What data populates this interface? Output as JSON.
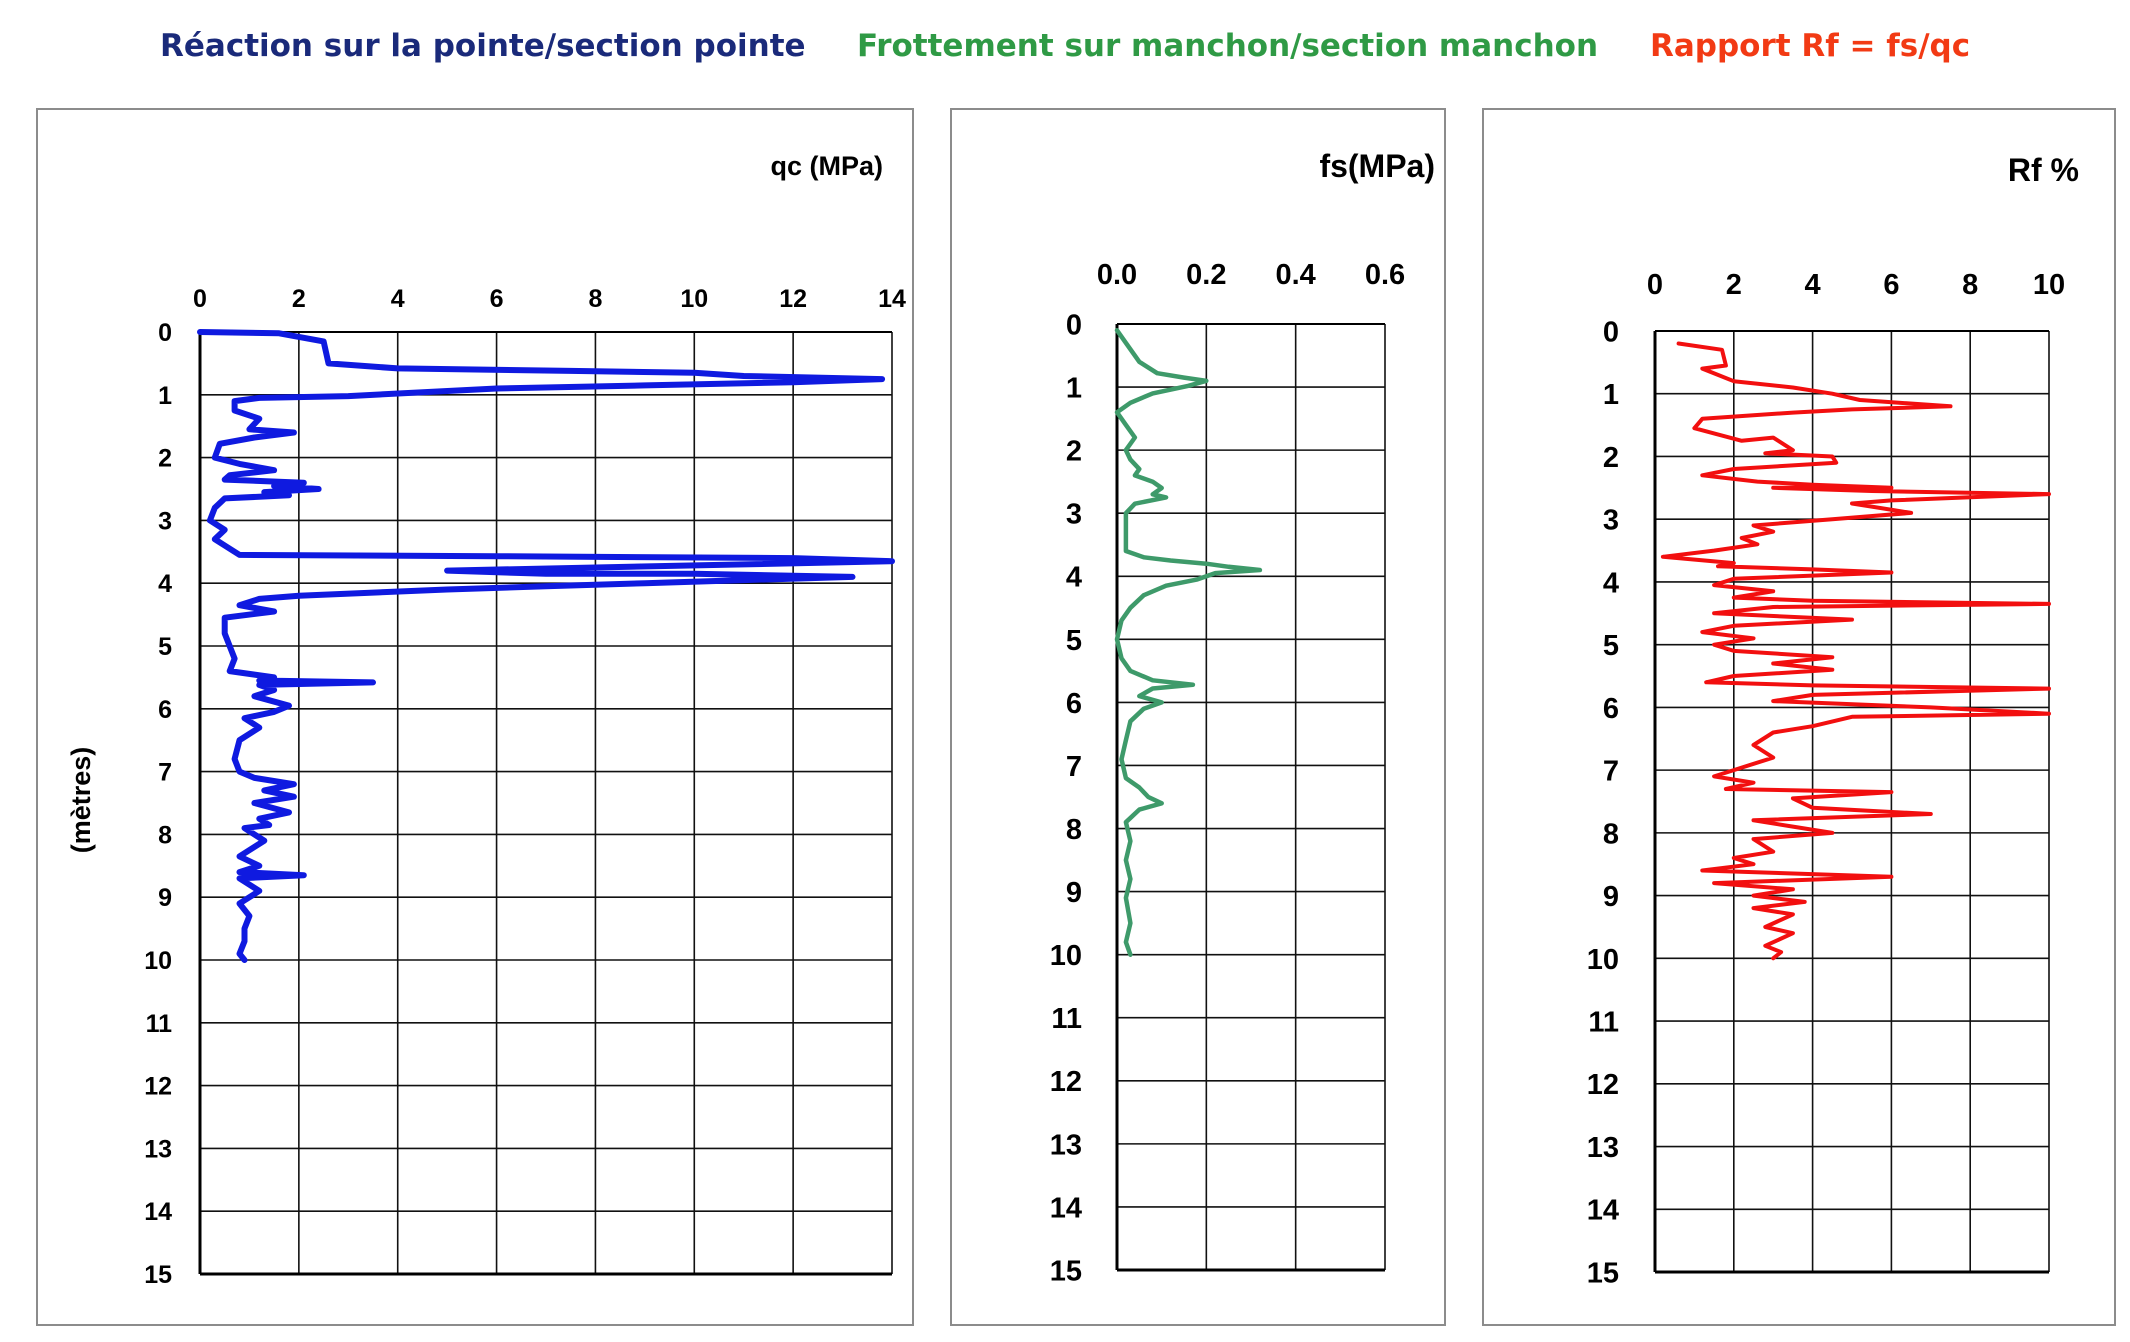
{
  "headings": {
    "qc": "Réaction sur la pointe/section pointe",
    "fs": "Frottement sur manchon/section manchon",
    "rf": "Rapport Rf = fs/qc"
  },
  "colors": {
    "qc": "#0f1ae0",
    "fs": "#3e9a6a",
    "rf": "#f20f0f",
    "heading_qc": "#1a2a7a",
    "heading_fs": "#2f9a45",
    "heading_rf": "#f23a14"
  },
  "chart_data": [
    {
      "type": "line",
      "title": "",
      "xlabel": "qc (MPa)",
      "ylabel": "(mètres)",
      "xlim": [
        0,
        14
      ],
      "ylim": [
        0,
        15
      ],
      "x_ticks": [
        "0",
        "2",
        "4",
        "6",
        "8",
        "10",
        "12",
        "14"
      ],
      "y_ticks": [
        "0",
        "1",
        "2",
        "3",
        "4",
        "5",
        "6",
        "7",
        "8",
        "9",
        "10",
        "11",
        "12",
        "13",
        "14",
        "15"
      ],
      "grid": true,
      "series": [
        {
          "color": "#0f1ae0",
          "points": [
            [
              0,
              0
            ],
            [
              1.6,
              0.02
            ],
            [
              2.5,
              0.15
            ],
            [
              2.6,
              0.5
            ],
            [
              4,
              0.58
            ],
            [
              7.5,
              0.62
            ],
            [
              10,
              0.65
            ],
            [
              11,
              0.7
            ],
            [
              13.8,
              0.75
            ],
            [
              12,
              0.8
            ],
            [
              9,
              0.85
            ],
            [
              6,
              0.9
            ],
            [
              3,
              1.02
            ],
            [
              1.2,
              1.05
            ],
            [
              0.7,
              1.1
            ],
            [
              0.7,
              1.25
            ],
            [
              1.2,
              1.38
            ],
            [
              1,
              1.55
            ],
            [
              1.9,
              1.6
            ],
            [
              1.1,
              1.68
            ],
            [
              0.4,
              1.78
            ],
            [
              0.3,
              2.0
            ],
            [
              0.8,
              2.1
            ],
            [
              1.5,
              2.2
            ],
            [
              0.6,
              2.28
            ],
            [
              0.5,
              2.35
            ],
            [
              2.1,
              2.4
            ],
            [
              1.5,
              2.45
            ],
            [
              2.4,
              2.5
            ],
            [
              1.3,
              2.55
            ],
            [
              1.8,
              2.6
            ],
            [
              0.5,
              2.65
            ],
            [
              0.3,
              2.8
            ],
            [
              0.2,
              3.0
            ],
            [
              0.5,
              3.15
            ],
            [
              0.3,
              3.3
            ],
            [
              0.5,
              3.4
            ],
            [
              0.8,
              3.55
            ],
            [
              6,
              3.57
            ],
            [
              12,
              3.6
            ],
            [
              14,
              3.65
            ],
            [
              11,
              3.7
            ],
            [
              8,
              3.75
            ],
            [
              5,
              3.8
            ],
            [
              7,
              3.85
            ],
            [
              10,
              3.85
            ],
            [
              12,
              3.88
            ],
            [
              13.2,
              3.9
            ],
            [
              11,
              3.95
            ],
            [
              9,
              4.0
            ],
            [
              7,
              4.05
            ],
            [
              5,
              4.1
            ],
            [
              3.5,
              4.15
            ],
            [
              2,
              4.2
            ],
            [
              1.2,
              4.25
            ],
            [
              0.8,
              4.35
            ],
            [
              1.5,
              4.45
            ],
            [
              0.5,
              4.55
            ],
            [
              0.5,
              4.8
            ],
            [
              0.7,
              5.2
            ],
            [
              0.6,
              5.4
            ],
            [
              1.5,
              5.5
            ],
            [
              1.2,
              5.55
            ],
            [
              3.5,
              5.58
            ],
            [
              1.2,
              5.62
            ],
            [
              1.5,
              5.7
            ],
            [
              1.1,
              5.8
            ],
            [
              1.8,
              5.95
            ],
            [
              1.5,
              6.05
            ],
            [
              0.9,
              6.15
            ],
            [
              1.2,
              6.3
            ],
            [
              0.8,
              6.5
            ],
            [
              0.7,
              6.8
            ],
            [
              0.8,
              7.0
            ],
            [
              1.1,
              7.1
            ],
            [
              1.9,
              7.2
            ],
            [
              1.3,
              7.3
            ],
            [
              1.9,
              7.4
            ],
            [
              1.1,
              7.5
            ],
            [
              1.8,
              7.65
            ],
            [
              1.2,
              7.75
            ],
            [
              1.4,
              7.85
            ],
            [
              0.9,
              7.9
            ],
            [
              1.3,
              8.1
            ],
            [
              0.8,
              8.35
            ],
            [
              1.2,
              8.5
            ],
            [
              0.8,
              8.6
            ],
            [
              2.1,
              8.65
            ],
            [
              0.8,
              8.7
            ],
            [
              1.2,
              8.9
            ],
            [
              0.8,
              9.1
            ],
            [
              1.0,
              9.3
            ],
            [
              0.9,
              9.5
            ],
            [
              0.9,
              9.7
            ],
            [
              0.8,
              9.9
            ],
            [
              0.9,
              10.0
            ]
          ]
        }
      ]
    },
    {
      "type": "line",
      "title": "",
      "xlabel": "fs(MPa)",
      "xlim": [
        0,
        0.6
      ],
      "ylim": [
        0,
        15
      ],
      "x_ticks": [
        "0.0",
        "0.2",
        "0.4",
        "0.6"
      ],
      "y_ticks": [
        "0",
        "1",
        "2",
        "3",
        "4",
        "5",
        "6",
        "7",
        "8",
        "9",
        "10",
        "11",
        "12",
        "13",
        "14",
        "15"
      ],
      "grid": true,
      "series": [
        {
          "color": "#3e9a6a",
          "points": [
            [
              0,
              0.1
            ],
            [
              0.02,
              0.3
            ],
            [
              0.05,
              0.6
            ],
            [
              0.09,
              0.78
            ],
            [
              0.15,
              0.85
            ],
            [
              0.2,
              0.9
            ],
            [
              0.16,
              0.98
            ],
            [
              0.08,
              1.1
            ],
            [
              0.03,
              1.25
            ],
            [
              0.0,
              1.4
            ],
            [
              0.02,
              1.6
            ],
            [
              0.04,
              1.8
            ],
            [
              0.02,
              2.0
            ],
            [
              0.03,
              2.15
            ],
            [
              0.05,
              2.3
            ],
            [
              0.04,
              2.4
            ],
            [
              0.08,
              2.5
            ],
            [
              0.1,
              2.6
            ],
            [
              0.08,
              2.7
            ],
            [
              0.11,
              2.75
            ],
            [
              0.04,
              2.85
            ],
            [
              0.02,
              3.0
            ],
            [
              0.02,
              3.6
            ],
            [
              0.06,
              3.7
            ],
            [
              0.12,
              3.75
            ],
            [
              0.2,
              3.8
            ],
            [
              0.25,
              3.85
            ],
            [
              0.32,
              3.9
            ],
            [
              0.22,
              3.95
            ],
            [
              0.18,
              4.05
            ],
            [
              0.11,
              4.15
            ],
            [
              0.06,
              4.3
            ],
            [
              0.03,
              4.5
            ],
            [
              0.01,
              4.7
            ],
            [
              0.0,
              5.0
            ],
            [
              0.01,
              5.3
            ],
            [
              0.03,
              5.5
            ],
            [
              0.08,
              5.65
            ],
            [
              0.17,
              5.72
            ],
            [
              0.08,
              5.78
            ],
            [
              0.05,
              5.9
            ],
            [
              0.1,
              6.0
            ],
            [
              0.06,
              6.1
            ],
            [
              0.03,
              6.3
            ],
            [
              0.02,
              6.6
            ],
            [
              0.01,
              6.9
            ],
            [
              0.02,
              7.2
            ],
            [
              0.05,
              7.35
            ],
            [
              0.07,
              7.5
            ],
            [
              0.1,
              7.6
            ],
            [
              0.05,
              7.7
            ],
            [
              0.02,
              7.9
            ],
            [
              0.03,
              8.2
            ],
            [
              0.02,
              8.5
            ],
            [
              0.03,
              8.8
            ],
            [
              0.02,
              9.1
            ],
            [
              0.03,
              9.5
            ],
            [
              0.02,
              9.8
            ],
            [
              0.03,
              10.0
            ]
          ]
        }
      ]
    },
    {
      "type": "line",
      "title": "",
      "xlabel": "Rf %",
      "xlim": [
        0,
        10
      ],
      "ylim": [
        0,
        15
      ],
      "x_ticks": [
        "0",
        "2",
        "4",
        "6",
        "8",
        "10"
      ],
      "y_ticks": [
        "0",
        "1",
        "2",
        "3",
        "4",
        "5",
        "6",
        "7",
        "8",
        "9",
        "10",
        "11",
        "12",
        "13",
        "14",
        "15"
      ],
      "grid": true,
      "series": [
        {
          "color": "#f20f0f",
          "points": [
            [
              0.6,
              0.2
            ],
            [
              1.7,
              0.3
            ],
            [
              1.8,
              0.55
            ],
            [
              1.2,
              0.6
            ],
            [
              2.0,
              0.8
            ],
            [
              3.5,
              0.9
            ],
            [
              4.5,
              1.0
            ],
            [
              5.2,
              1.1
            ],
            [
              7.5,
              1.2
            ],
            [
              5.0,
              1.25
            ],
            [
              3.5,
              1.3
            ],
            [
              1.2,
              1.4
            ],
            [
              1.0,
              1.55
            ],
            [
              2.2,
              1.75
            ],
            [
              3.0,
              1.7
            ],
            [
              3.5,
              1.9
            ],
            [
              2.8,
              1.95
            ],
            [
              4.5,
              2.0
            ],
            [
              4.6,
              2.1
            ],
            [
              2.0,
              2.2
            ],
            [
              1.2,
              2.3
            ],
            [
              2.6,
              2.4
            ],
            [
              4.0,
              2.45
            ],
            [
              6.0,
              2.5
            ],
            [
              3.0,
              2.5
            ],
            [
              5.5,
              2.55
            ],
            [
              10,
              2.6
            ],
            [
              6.0,
              2.7
            ],
            [
              5.0,
              2.75
            ],
            [
              6.5,
              2.9
            ],
            [
              4.5,
              3.0
            ],
            [
              2.5,
              3.1
            ],
            [
              3.0,
              3.2
            ],
            [
              2.2,
              3.3
            ],
            [
              2.6,
              3.4
            ],
            [
              1.5,
              3.5
            ],
            [
              0.2,
              3.6
            ],
            [
              2.0,
              3.7
            ],
            [
              1.6,
              3.75
            ],
            [
              4.0,
              3.8
            ],
            [
              6.0,
              3.85
            ],
            [
              2.0,
              3.95
            ],
            [
              1.5,
              4.05
            ],
            [
              3.0,
              4.15
            ],
            [
              2.0,
              4.25
            ],
            [
              4.0,
              4.3
            ],
            [
              10,
              4.35
            ],
            [
              3.0,
              4.4
            ],
            [
              1.5,
              4.5
            ],
            [
              5.0,
              4.6
            ],
            [
              2.0,
              4.7
            ],
            [
              1.2,
              4.8
            ],
            [
              2.5,
              4.9
            ],
            [
              1.5,
              5.0
            ],
            [
              2.0,
              5.1
            ],
            [
              4.5,
              5.2
            ],
            [
              3.0,
              5.3
            ],
            [
              4.5,
              5.4
            ],
            [
              2.0,
              5.5
            ],
            [
              1.3,
              5.6
            ],
            [
              4.0,
              5.65
            ],
            [
              10,
              5.7
            ],
            [
              4.0,
              5.8
            ],
            [
              3.0,
              5.9
            ],
            [
              7.0,
              6.0
            ],
            [
              10,
              6.1
            ],
            [
              5.0,
              6.15
            ],
            [
              4.0,
              6.3
            ],
            [
              3.0,
              6.4
            ],
            [
              2.5,
              6.6
            ],
            [
              3.0,
              6.8
            ],
            [
              2.0,
              7.0
            ],
            [
              1.5,
              7.1
            ],
            [
              2.5,
              7.2
            ],
            [
              1.8,
              7.3
            ],
            [
              6.0,
              7.35
            ],
            [
              3.5,
              7.45
            ],
            [
              4.0,
              7.6
            ],
            [
              7.0,
              7.7
            ],
            [
              2.5,
              7.8
            ],
            [
              3.5,
              7.9
            ],
            [
              4.5,
              8.0
            ],
            [
              2.5,
              8.1
            ],
            [
              3.0,
              8.3
            ],
            [
              2.0,
              8.4
            ],
            [
              2.5,
              8.5
            ],
            [
              1.2,
              8.6
            ],
            [
              6.0,
              8.7
            ],
            [
              1.5,
              8.8
            ],
            [
              3.5,
              8.9
            ],
            [
              2.5,
              9.0
            ],
            [
              3.8,
              9.1
            ],
            [
              2.5,
              9.2
            ],
            [
              3.5,
              9.3
            ],
            [
              2.8,
              9.5
            ],
            [
              3.5,
              9.6
            ],
            [
              2.8,
              9.8
            ],
            [
              3.2,
              9.9
            ],
            [
              3.0,
              10.0
            ]
          ]
        }
      ]
    }
  ]
}
